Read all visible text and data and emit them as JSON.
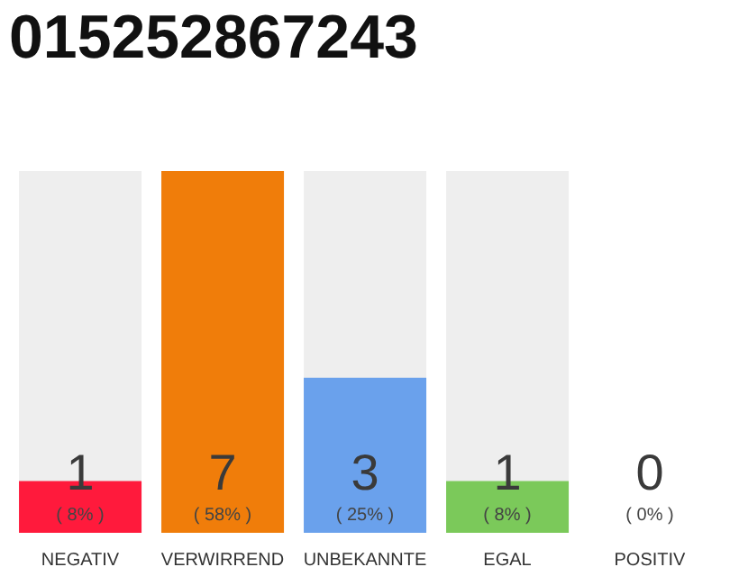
{
  "chart_data": {
    "type": "bar",
    "title": "015252867243",
    "categories": [
      "NEGATIV",
      "VERWIRREND",
      "UNBEKANNTE",
      "EGAL",
      "POSITIV"
    ],
    "values": [
      1,
      7,
      3,
      1,
      0
    ],
    "colors": [
      "#ff1a3c",
      "#f07d0a",
      "#6aa1ec",
      "#7bc95a",
      "#d9d9d9"
    ],
    "data_labels": true,
    "annotations": [
      "( 8% )",
      "( 58% )",
      "( 25% )",
      "( 8% )",
      "( 0% )"
    ]
  }
}
